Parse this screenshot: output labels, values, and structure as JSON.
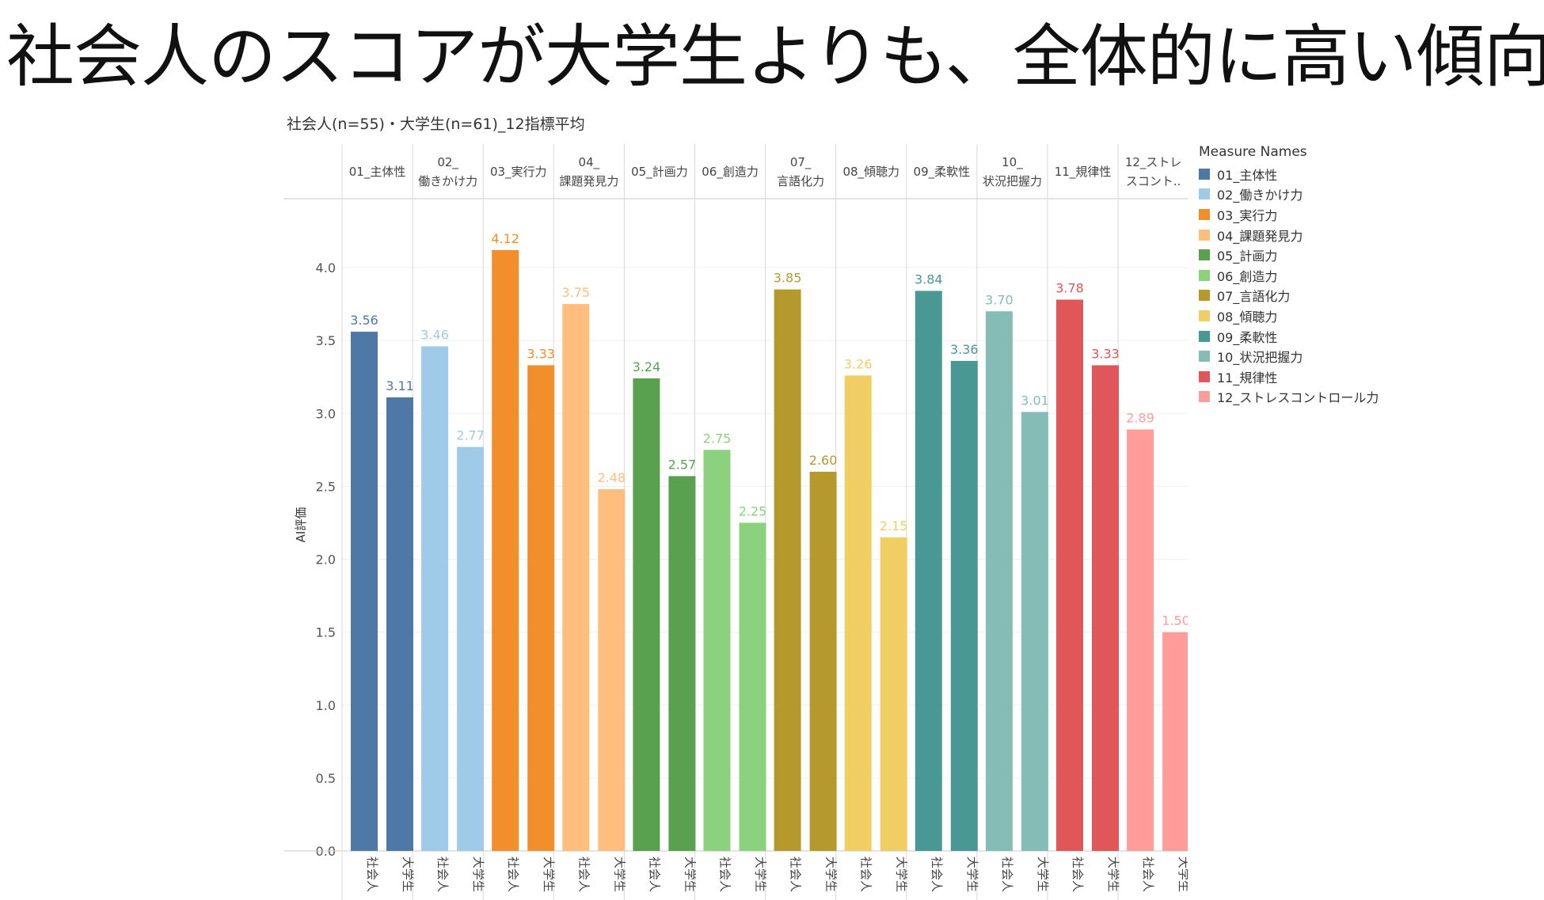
{
  "headline": "社会人のスコアが大学生よりも、全体的に高い傾向。",
  "chart_data": {
    "type": "bar",
    "title": "社会人(n=55)・大学生(n=61)_12指標平均",
    "ylabel": "AI評価",
    "xlabel": "",
    "ylim": [
      0,
      4.4
    ],
    "yticks": [
      "0.0",
      "0.5",
      "1.0",
      "1.5",
      "2.0",
      "2.5",
      "3.0",
      "3.5",
      "4.0"
    ],
    "grid": true,
    "legend_title": "Measure Names",
    "legend_position": "right",
    "subcategories": [
      "社会人",
      "大学生"
    ],
    "groups": [
      {
        "name": "01_主体性",
        "header": [
          "01_主体性"
        ],
        "color": "#4e79a7",
        "values": [
          3.56,
          3.11
        ],
        "labels": [
          "3.56",
          "3.11"
        ]
      },
      {
        "name": "02_働きかけ力",
        "header": [
          "02_",
          "働きかけ力"
        ],
        "color": "#a0cbe8",
        "values": [
          3.46,
          2.77
        ],
        "labels": [
          "3.46",
          "2.77"
        ]
      },
      {
        "name": "03_実行力",
        "header": [
          "03_実行力"
        ],
        "color": "#f28e2b",
        "values": [
          4.12,
          3.33
        ],
        "labels": [
          "4.12",
          "3.33"
        ]
      },
      {
        "name": "04_課題発見力",
        "header": [
          "04_",
          "課題発見力"
        ],
        "color": "#ffbe7d",
        "values": [
          3.75,
          2.48
        ],
        "labels": [
          "3.75",
          "2.48"
        ]
      },
      {
        "name": "05_計画力",
        "header": [
          "05_計画力"
        ],
        "color": "#59a14f",
        "values": [
          3.24,
          2.57
        ],
        "labels": [
          "3.24",
          "2.57"
        ]
      },
      {
        "name": "06_創造力",
        "header": [
          "06_創造力"
        ],
        "color": "#8cd17d",
        "values": [
          2.75,
          2.25
        ],
        "labels": [
          "2.75",
          "2.25"
        ]
      },
      {
        "name": "07_言語化力",
        "header": [
          "07_",
          "言語化力"
        ],
        "color": "#b6992d",
        "values": [
          3.85,
          2.6
        ],
        "labels": [
          "3.85",
          "2.60"
        ]
      },
      {
        "name": "08_傾聴力",
        "header": [
          "08_傾聴力"
        ],
        "color": "#f1ce63",
        "values": [
          3.26,
          2.15
        ],
        "labels": [
          "3.26",
          "2.15"
        ]
      },
      {
        "name": "09_柔軟性",
        "header": [
          "09_柔軟性"
        ],
        "color": "#499894",
        "values": [
          3.84,
          3.36
        ],
        "labels": [
          "3.84",
          "3.36"
        ]
      },
      {
        "name": "10_状況把握力",
        "header": [
          "10_",
          "状況把握力"
        ],
        "color": "#86bcb6",
        "values": [
          3.7,
          3.01
        ],
        "labels": [
          "3.70",
          "3.01"
        ]
      },
      {
        "name": "11_規律性",
        "header": [
          "11_規律性"
        ],
        "color": "#e15759",
        "values": [
          3.78,
          3.33
        ],
        "labels": [
          "3.78",
          "3.33"
        ]
      },
      {
        "name": "12_ストレスコントロール力",
        "header": [
          "12_ストレ",
          "スコント.."
        ],
        "color": "#ff9d9a",
        "values": [
          2.89,
          1.5
        ],
        "labels": [
          "2.89",
          "1.50"
        ]
      }
    ]
  }
}
